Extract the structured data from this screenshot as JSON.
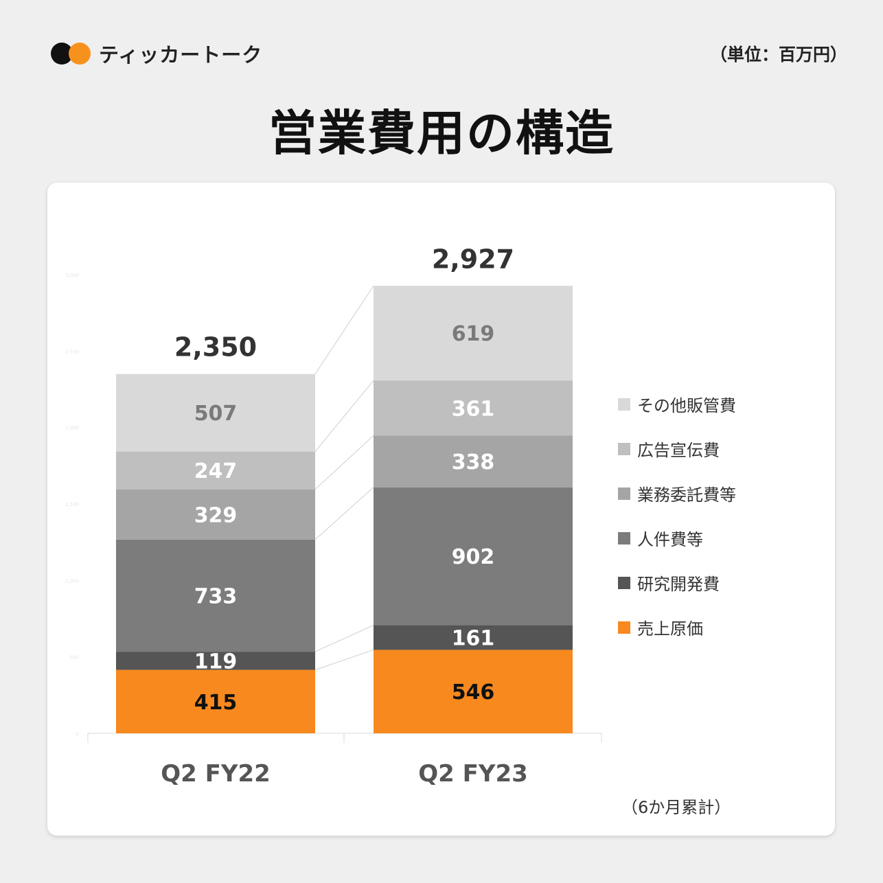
{
  "brand": {
    "name": "ティッカートーク"
  },
  "unit_label": "（単位：百万円）",
  "footnote": "（6か月累計）",
  "colors": {
    "background": "#efefef",
    "card": "#ffffff",
    "accent": "#f7911d"
  },
  "chart_data": {
    "type": "bar",
    "stacked": true,
    "title": "営業費用の構造",
    "categories": [
      "Q2 FY22",
      "Q2 FY23"
    ],
    "series": [
      {
        "name": "売上原価",
        "values": [
          415,
          546
        ],
        "color": "#f7891f",
        "label_color": "#111111"
      },
      {
        "name": "研究開発費",
        "values": [
          119,
          161
        ],
        "color": "#555555",
        "label_color": "#ffffff"
      },
      {
        "name": "人件費等",
        "values": [
          733,
          902
        ],
        "color": "#7c7c7c",
        "label_color": "#ffffff"
      },
      {
        "name": "業務委託費等",
        "values": [
          329,
          338
        ],
        "color": "#a5a5a5",
        "label_color": "#ffffff"
      },
      {
        "name": "広告宣伝費",
        "values": [
          247,
          361
        ],
        "color": "#bfbfbf",
        "label_color": "#ffffff"
      },
      {
        "name": "その他販管費",
        "values": [
          507,
          619
        ],
        "color": "#d9d9d9",
        "label_color": "#7a7a7a"
      }
    ],
    "totals": [
      "2,350",
      "2,927"
    ],
    "ylim": [
      0,
      3000
    ],
    "ytick_values": [
      0,
      500,
      1000,
      1500,
      2000,
      2500,
      3000
    ],
    "ytick_labels": [
      "0",
      "500",
      "1,000",
      "1,500",
      "2,000",
      "2,500",
      "3,000"
    ],
    "legend_position": "right",
    "grid": false,
    "connector_lines": true
  }
}
